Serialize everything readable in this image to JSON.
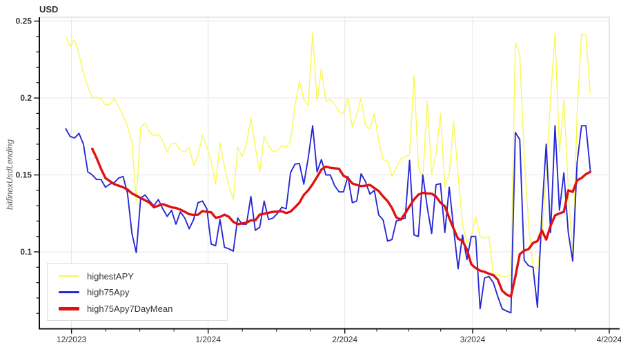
{
  "title": "USD",
  "y_axis_title": "bitfinexUsdLending",
  "plot": {
    "bg": "#ffffff",
    "grid_color": "#e5e5e5",
    "frame_color": "#cfcfcf",
    "axis_color": "#111111",
    "tick_label_color": "#333333",
    "x_range_days": [
      -7.3,
      122
    ],
    "y_range": [
      0.05,
      0.2525
    ],
    "x_ticks": [
      {
        "label": "12/2023",
        "day": 0
      },
      {
        "label": "1/2024",
        "day": 31
      },
      {
        "label": "2/2024",
        "day": 62
      },
      {
        "label": "3/2024",
        "day": 91
      },
      {
        "label": "4/2024",
        "day": 122
      }
    ],
    "x_minor_ticks_per_interval": 3,
    "y_major_ticks": [
      {
        "label": "0.25",
        "value": 0.25
      },
      {
        "label": "0.2",
        "value": 0.2
      },
      {
        "label": "0.15",
        "value": 0.15
      },
      {
        "label": "0.1",
        "value": 0.1
      }
    ],
    "y_minor_step": 0.01,
    "data_start_day": -1.3
  },
  "legend": {
    "bg": "#ffffff",
    "border": "#dddddd"
  },
  "chart_data": {
    "type": "line",
    "title": "USD",
    "ylabel": "bitfinexUsdLending",
    "x_start_date": "2023-11-30",
    "x_end_date": "2024-03-27",
    "x_step_days": 1,
    "x_axis_tick_labels": [
      "12/2023",
      "1/2024",
      "2/2024",
      "3/2024",
      "4/2024"
    ],
    "y_axis_tick_labels": [
      "0.1",
      "0.15",
      "0.2",
      "0.25"
    ],
    "ylim": [
      0.05,
      0.2525
    ],
    "grid": true,
    "legend_position": "bottom-left",
    "series": [
      {
        "name": "highestAPY",
        "color": "#f9f94f",
        "stroke_width": 1.4,
        "values": [
          0.24,
          0.2335,
          0.238,
          0.2285,
          0.216,
          0.2075,
          0.2,
          0.2005,
          0.1995,
          0.1955,
          0.196,
          0.1998,
          0.1945,
          0.1885,
          0.1815,
          0.1715,
          0.133,
          0.181,
          0.1835,
          0.178,
          0.1755,
          0.1765,
          0.172,
          0.1648,
          0.1705,
          0.1706,
          0.166,
          0.165,
          0.168,
          0.156,
          0.163,
          0.176,
          0.168,
          0.159,
          0.144,
          0.171,
          0.155,
          0.143,
          0.134,
          0.168,
          0.162,
          0.17,
          0.187,
          0.168,
          0.152,
          0.175,
          0.169,
          0.165,
          0.166,
          0.169,
          0.168,
          0.172,
          0.195,
          0.211,
          0.199,
          0.195,
          0.2425,
          0.198,
          0.219,
          0.198,
          0.199,
          0.196,
          0.191,
          0.19,
          0.2,
          0.181,
          0.189,
          0.2,
          0.182,
          0.18,
          0.19,
          0.172,
          0.16,
          0.159,
          0.149,
          0.155,
          0.16,
          0.162,
          0.163,
          0.215,
          0.155,
          0.148,
          0.198,
          0.15,
          0.164,
          0.19,
          0.142,
          0.151,
          0.185,
          0.15,
          0.118,
          0.106,
          0.11,
          0.123,
          0.11,
          0.109,
          0.11,
          0.085,
          0.0855,
          0.084,
          0.0838,
          0.085,
          0.2358,
          0.228,
          0.163,
          0.118,
          0.09,
          0.089,
          0.11,
          0.15,
          0.2,
          0.2425,
          0.165,
          0.199,
          0.14,
          0.095,
          0.19,
          0.2418,
          0.241,
          0.2033
        ]
      },
      {
        "name": "high75Apy",
        "color": "#2828d7",
        "stroke_width": 1.9,
        "values": [
          0.18,
          0.175,
          0.174,
          0.177,
          0.17,
          0.152,
          0.15,
          0.147,
          0.147,
          0.142,
          0.144,
          0.145,
          0.148,
          0.149,
          0.138,
          0.112,
          0.0995,
          0.135,
          0.137,
          0.133,
          0.13,
          0.134,
          0.128,
          0.123,
          0.127,
          0.118,
          0.126,
          0.122,
          0.115,
          0.121,
          0.132,
          0.133,
          0.128,
          0.105,
          0.104,
          0.121,
          0.103,
          0.102,
          0.1005,
          0.122,
          0.118,
          0.118,
          0.136,
          0.114,
          0.116,
          0.133,
          0.121,
          0.122,
          0.125,
          0.129,
          0.128,
          0.1515,
          0.157,
          0.1575,
          0.144,
          0.161,
          0.182,
          0.152,
          0.16,
          0.15,
          0.15,
          0.143,
          0.139,
          0.139,
          0.149,
          0.132,
          0.133,
          0.1507,
          0.1457,
          0.1375,
          0.14,
          0.124,
          0.1207,
          0.107,
          0.108,
          0.12,
          0.121,
          0.122,
          0.1595,
          0.111,
          0.11,
          0.15,
          0.129,
          0.112,
          0.1436,
          0.1444,
          0.1125,
          0.142,
          0.115,
          0.089,
          0.111,
          0.095,
          0.11,
          0.11,
          0.063,
          0.083,
          0.084,
          0.08,
          0.071,
          0.063,
          0.0615,
          0.0604,
          0.1776,
          0.173,
          0.0946,
          0.091,
          0.09,
          0.064,
          0.125,
          0.17,
          0.1125,
          0.182,
          0.127,
          0.1514,
          0.1125,
          0.094,
          0.158,
          0.182,
          0.182,
          0.153
        ]
      },
      {
        "name": "high75Apy7DayMean",
        "color": "#e01111",
        "stroke_width": 3.4,
        "values": [
          null,
          null,
          null,
          null,
          null,
          null,
          0.167,
          0.161,
          0.154,
          0.148,
          0.146,
          0.144,
          0.143,
          0.142,
          0.1405,
          0.138,
          0.1365,
          0.135,
          0.1335,
          0.132,
          0.129,
          0.13,
          0.131,
          0.13,
          0.129,
          0.1285,
          0.1275,
          0.126,
          0.1245,
          0.124,
          0.1242,
          0.1265,
          0.126,
          0.1257,
          0.1222,
          0.1227,
          0.1242,
          0.1228,
          0.1195,
          0.118,
          0.1185,
          0.119,
          0.1205,
          0.1205,
          0.1242,
          0.1248,
          0.1254,
          0.126,
          0.1262,
          0.1264,
          0.1252,
          0.1262,
          0.129,
          0.132,
          0.137,
          0.14,
          0.144,
          0.1487,
          0.1535,
          0.1554,
          0.1547,
          0.1543,
          0.154,
          0.1495,
          0.148,
          0.1445,
          0.1435,
          0.1427,
          0.143,
          0.1435,
          0.1415,
          0.1395,
          0.136,
          0.133,
          0.1285,
          0.1224,
          0.121,
          0.125,
          0.1296,
          0.134,
          0.1372,
          0.1384,
          0.138,
          0.1378,
          0.136,
          0.132,
          0.1296,
          0.122,
          0.115,
          0.1085,
          0.1072,
          0.1015,
          0.092,
          0.0895,
          0.0878,
          0.087,
          0.0858,
          0.0849,
          0.082,
          0.0748,
          0.0722,
          0.071,
          0.0839,
          0.0985,
          0.1008,
          0.1018,
          0.1058,
          0.107,
          0.114,
          0.108,
          0.117,
          0.1237,
          0.125,
          0.126,
          0.14,
          0.139,
          0.1465,
          0.148,
          0.1505,
          0.152
        ]
      }
    ]
  }
}
